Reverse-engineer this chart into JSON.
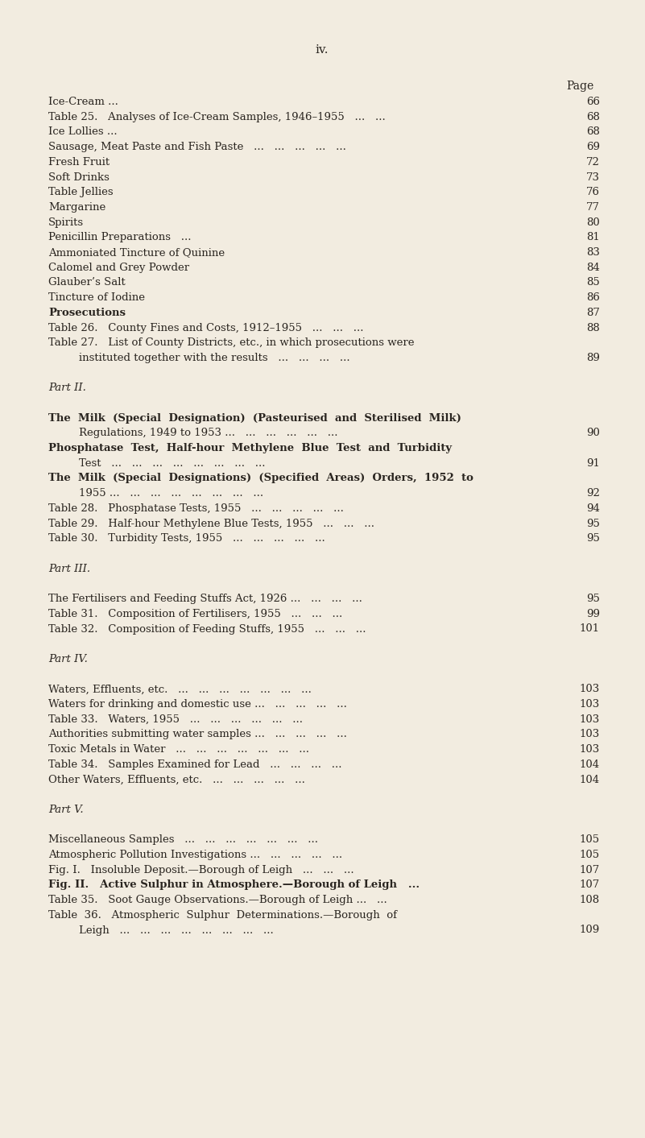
{
  "page_header": "iv.",
  "background_color": "#f2ece0",
  "text_color": "#2a2520",
  "entries": [
    {
      "text": "Ice-Cream ...",
      "dots": "   ...   ...   ...   ...   ...   ...   ...   ...",
      "page": "66",
      "indent": 0,
      "bold": false,
      "italic": false,
      "newline_cont": false
    },
    {
      "text": "Table 25.   Analyses of Ice-Cream Samples, 1946–1955   ...   ...",
      "dots": "",
      "page": "68",
      "indent": 0,
      "bold": false,
      "italic": false,
      "newline_cont": false
    },
    {
      "text": "Ice Lollies ...",
      "dots": "   ...   ...   ...   ...   ...   ...   ...   ...",
      "page": "68",
      "indent": 0,
      "bold": false,
      "italic": false,
      "newline_cont": false
    },
    {
      "text": "Sausage, Meat Paste and Fish Paste   ...   ...   ...   ...   ...",
      "dots": "",
      "page": "69",
      "indent": 0,
      "bold": false,
      "italic": false,
      "newline_cont": false
    },
    {
      "text": "Fresh Fruit",
      "dots": "   ...   ...   ...   ...   ...   ...   ...   ...",
      "page": "72",
      "indent": 0,
      "bold": false,
      "italic": false,
      "newline_cont": false
    },
    {
      "text": "Soft Drinks",
      "dots": "   ...   ...   ...   ...   ...   ...   ...   ...",
      "page": "73",
      "indent": 0,
      "bold": false,
      "italic": false,
      "newline_cont": false
    },
    {
      "text": "Table Jellies",
      "dots": "   ...   ...   ...   ...   ...   ...   ...   ...",
      "page": "76",
      "indent": 0,
      "bold": false,
      "italic": false,
      "newline_cont": false
    },
    {
      "text": "Margarine",
      "dots": "   ...   ...   ...   ...   ...   ...   ...   ...",
      "page": "77",
      "indent": 0,
      "bold": false,
      "italic": false,
      "newline_cont": false
    },
    {
      "text": "Spirits",
      "dots": "   ...   ...   ...   ...   ...   ...   ...   ...   ...",
      "page": "80",
      "indent": 0,
      "bold": false,
      "italic": false,
      "newline_cont": false
    },
    {
      "text": "Penicillin Preparations   ...",
      "dots": "   ...   ...   ...   ...   ...   ...",
      "page": "81",
      "indent": 0,
      "bold": false,
      "italic": false,
      "newline_cont": false
    },
    {
      "text": "Ammoniated Tincture of Quinine",
      "dots": "   ...   ...   ...   ...   ...",
      "page": "83",
      "indent": 0,
      "bold": false,
      "italic": false,
      "newline_cont": false
    },
    {
      "text": "Calomel and Grey Powder",
      "dots": "   ...   ...   ...   ...   ...   ...",
      "page": "84",
      "indent": 0,
      "bold": false,
      "italic": false,
      "newline_cont": false
    },
    {
      "text": "Glauber’s Salt",
      "dots": "   ...   ...   ...   ...   ...   ...   ...   ...",
      "page": "85",
      "indent": 0,
      "bold": false,
      "italic": false,
      "newline_cont": false
    },
    {
      "text": "Tincture of Iodine",
      "dots": "   ...   ...   ...   ...   ...   ...   ...",
      "page": "86",
      "indent": 0,
      "bold": false,
      "italic": false,
      "newline_cont": false
    },
    {
      "text": "Prosecutions",
      "dots": "   ...   ...   ...   ...   ...   ...   ...   ...",
      "page": "87",
      "indent": 0,
      "bold": true,
      "italic": false,
      "newline_cont": false
    },
    {
      "text": "Table 26.   County Fines and Costs, 1912–1955   ...   ...   ...",
      "dots": "",
      "page": "88",
      "indent": 0,
      "bold": false,
      "italic": false,
      "newline_cont": false
    },
    {
      "text": "Table 27.   List of County Districts, etc., in which prosecutions were",
      "dots": "",
      "page": "",
      "indent": 0,
      "bold": false,
      "italic": false,
      "newline_cont": false
    },
    {
      "text": "instituted together with the results   ...   ...   ...   ...",
      "dots": "",
      "page": "89",
      "indent": 1,
      "bold": false,
      "italic": false,
      "newline_cont": true
    },
    {
      "text": "",
      "dots": "",
      "page": "",
      "indent": 0,
      "bold": false,
      "italic": false,
      "newline_cont": false
    },
    {
      "text": "Part II.",
      "dots": "",
      "page": "",
      "indent": 0,
      "bold": false,
      "italic": true,
      "newline_cont": false
    },
    {
      "text": "",
      "dots": "",
      "page": "",
      "indent": 0,
      "bold": false,
      "italic": false,
      "newline_cont": false
    },
    {
      "text": "The  Milk  (Special  Designation)  (Pasteurised  and  Sterilised  Milk)",
      "dots": "",
      "page": "",
      "indent": 0,
      "bold": true,
      "italic": false,
      "newline_cont": false
    },
    {
      "text": "Regulations, 1949 to 1953 ...   ...   ...   ...   ...   ...",
      "dots": "",
      "page": "90",
      "indent": 1,
      "bold": false,
      "italic": false,
      "newline_cont": true
    },
    {
      "text": "Phosphatase  Test,  Half-hour  Methylene  Blue  Test  and  Turbidity",
      "dots": "",
      "page": "",
      "indent": 0,
      "bold": true,
      "italic": false,
      "newline_cont": false
    },
    {
      "text": "Test   ...   ...   ...   ...   ...   ...   ...   ...",
      "dots": "",
      "page": "91",
      "indent": 1,
      "bold": false,
      "italic": false,
      "newline_cont": true
    },
    {
      "text": "The  Milk  (Special  Designations)  (Specified  Areas)  Orders,  1952  to",
      "dots": "",
      "page": "",
      "indent": 0,
      "bold": true,
      "italic": false,
      "newline_cont": false
    },
    {
      "text": "1955 ...   ...   ...   ...   ...   ...   ...   ...",
      "dots": "",
      "page": "92",
      "indent": 1,
      "bold": false,
      "italic": false,
      "newline_cont": true
    },
    {
      "text": "Table 28.   Phosphatase Tests, 1955   ...   ...   ...   ...   ...",
      "dots": "",
      "page": "94",
      "indent": 0,
      "bold": false,
      "italic": false,
      "newline_cont": false
    },
    {
      "text": "Table 29.   Half-hour Methylene Blue Tests, 1955   ...   ...   ...",
      "dots": "",
      "page": "95",
      "indent": 0,
      "bold": false,
      "italic": false,
      "newline_cont": false
    },
    {
      "text": "Table 30.   Turbidity Tests, 1955   ...   ...   ...   ...   ...",
      "dots": "",
      "page": "95",
      "indent": 0,
      "bold": false,
      "italic": false,
      "newline_cont": false
    },
    {
      "text": "",
      "dots": "",
      "page": "",
      "indent": 0,
      "bold": false,
      "italic": false,
      "newline_cont": false
    },
    {
      "text": "Part III.",
      "dots": "",
      "page": "",
      "indent": 0,
      "bold": false,
      "italic": true,
      "newline_cont": false
    },
    {
      "text": "",
      "dots": "",
      "page": "",
      "indent": 0,
      "bold": false,
      "italic": false,
      "newline_cont": false
    },
    {
      "text": "The Fertilisers and Feeding Stuffs Act, 1926 ...   ...   ...   ...",
      "dots": "",
      "page": "95",
      "indent": 0,
      "bold": false,
      "italic": false,
      "newline_cont": false
    },
    {
      "text": "Table 31.   Composition of Fertilisers, 1955   ...   ...   ...",
      "dots": "",
      "page": "99",
      "indent": 0,
      "bold": false,
      "italic": false,
      "newline_cont": false
    },
    {
      "text": "Table 32.   Composition of Feeding Stuffs, 1955   ...   ...   ...",
      "dots": "",
      "page": "101",
      "indent": 0,
      "bold": false,
      "italic": false,
      "newline_cont": false
    },
    {
      "text": "",
      "dots": "",
      "page": "",
      "indent": 0,
      "bold": false,
      "italic": false,
      "newline_cont": false
    },
    {
      "text": "Part IV.",
      "dots": "",
      "page": "",
      "indent": 0,
      "bold": false,
      "italic": true,
      "newline_cont": false
    },
    {
      "text": "",
      "dots": "",
      "page": "",
      "indent": 0,
      "bold": false,
      "italic": false,
      "newline_cont": false
    },
    {
      "text": "Waters, Effluents, etc.   ...   ...   ...   ...   ...   ...   ...",
      "dots": "",
      "page": "103",
      "indent": 0,
      "bold": false,
      "italic": false,
      "newline_cont": false
    },
    {
      "text": "Waters for drinking and domestic use ...   ...   ...   ...   ...",
      "dots": "",
      "page": "103",
      "indent": 0,
      "bold": false,
      "italic": false,
      "newline_cont": false
    },
    {
      "text": "Table 33.   Waters, 1955   ...   ...   ...   ...   ...   ...",
      "dots": "",
      "page": "103",
      "indent": 0,
      "bold": false,
      "italic": false,
      "newline_cont": false
    },
    {
      "text": "Authorities submitting water samples ...   ...   ...   ...   ...",
      "dots": "",
      "page": "103",
      "indent": 0,
      "bold": false,
      "italic": false,
      "newline_cont": false
    },
    {
      "text": "Toxic Metals in Water   ...   ...   ...   ...   ...   ...   ...",
      "dots": "",
      "page": "103",
      "indent": 0,
      "bold": false,
      "italic": false,
      "newline_cont": false
    },
    {
      "text": "Table 34.   Samples Examined for Lead   ...   ...   ...   ...",
      "dots": "",
      "page": "104",
      "indent": 0,
      "bold": false,
      "italic": false,
      "newline_cont": false
    },
    {
      "text": "Other Waters, Effluents, etc.   ...   ...   ...   ...   ...",
      "dots": "",
      "page": "104",
      "indent": 0,
      "bold": false,
      "italic": false,
      "newline_cont": false
    },
    {
      "text": "",
      "dots": "",
      "page": "",
      "indent": 0,
      "bold": false,
      "italic": false,
      "newline_cont": false
    },
    {
      "text": "Part V.",
      "dots": "",
      "page": "",
      "indent": 0,
      "bold": false,
      "italic": true,
      "newline_cont": false
    },
    {
      "text": "",
      "dots": "",
      "page": "",
      "indent": 0,
      "bold": false,
      "italic": false,
      "newline_cont": false
    },
    {
      "text": "Miscellaneous Samples   ...   ...   ...   ...   ...   ...   ...",
      "dots": "",
      "page": "105",
      "indent": 0,
      "bold": false,
      "italic": false,
      "newline_cont": false
    },
    {
      "text": "Atmospheric Pollution Investigations ...   ...   ...   ...   ...",
      "dots": "",
      "page": "105",
      "indent": 0,
      "bold": false,
      "italic": false,
      "newline_cont": false
    },
    {
      "text": "Fig. I.   Insoluble Deposit.—Borough of Leigh   ...   ...   ...",
      "dots": "",
      "page": "107",
      "indent": 0,
      "bold": false,
      "italic": false,
      "newline_cont": false
    },
    {
      "text": "Fig. II.   Active Sulphur in Atmosphere.—Borough of Leigh   ...",
      "dots": "",
      "page": "107",
      "indent": 0,
      "bold": true,
      "italic": false,
      "newline_cont": false
    },
    {
      "text": "Table 35.   Soot Gauge Observations.—Borough of Leigh ...   ...",
      "dots": "",
      "page": "108",
      "indent": 0,
      "bold": false,
      "italic": false,
      "newline_cont": false
    },
    {
      "text": "Table  36.   Atmospheric  Sulphur  Determinations.—Borough  of",
      "dots": "",
      "page": "",
      "indent": 0,
      "bold": false,
      "italic": false,
      "newline_cont": false
    },
    {
      "text": "Leigh   ...   ...   ...   ...   ...   ...   ...   ...",
      "dots": "",
      "page": "109",
      "indent": 1,
      "bold": false,
      "italic": false,
      "newline_cont": true
    }
  ]
}
